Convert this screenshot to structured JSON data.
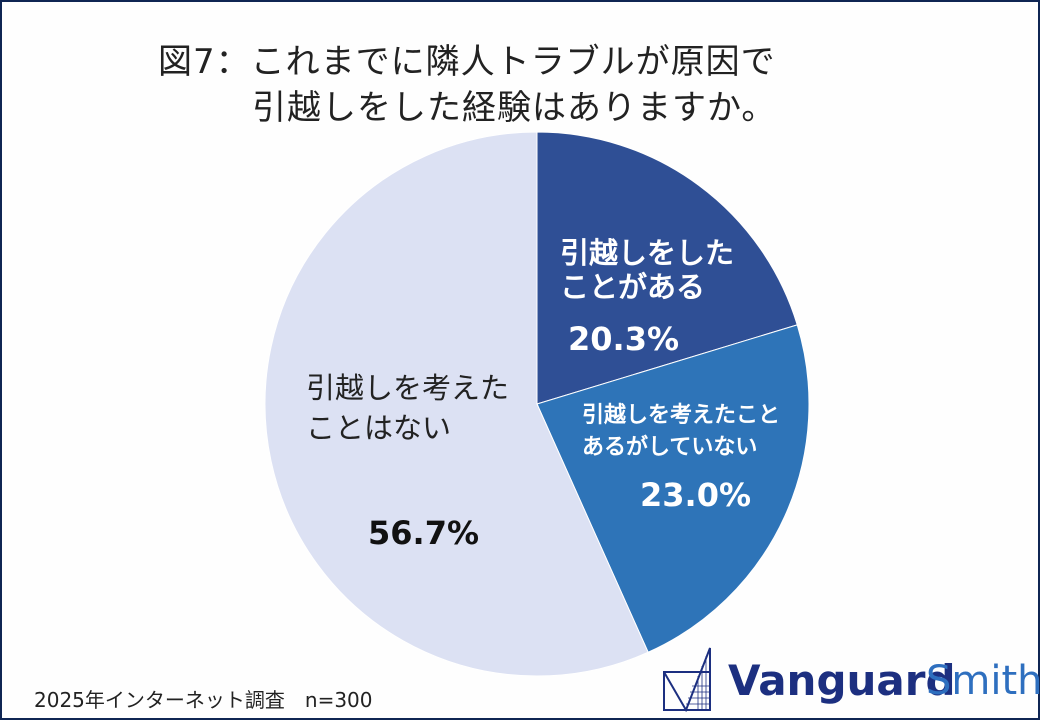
{
  "chart_data": {
    "type": "pie",
    "title": [
      "図7：これまでに隣人トラブルが原因で",
      "引越しをした経験はありますか。"
    ],
    "start": "12 o'clock, clockwise",
    "slices": [
      {
        "label": [
          "引越しをした",
          "ことがある"
        ],
        "value": 20.3,
        "value_label": "20.3%",
        "color": "#2f4f95",
        "text_color": "#ffffff"
      },
      {
        "label": [
          "引越しを考えたこと",
          "あるがしていない"
        ],
        "value": 23.0,
        "value_label": "23.0%",
        "color": "#2e74b8",
        "text_color": "#ffffff"
      },
      {
        "label": [
          "引越しを考えた",
          "ことはない"
        ],
        "value": 56.7,
        "value_label": "56.7%",
        "color": "#dce1f3",
        "text_color": "#222222"
      }
    ]
  },
  "footer": "2025年インターネット調査　n=300",
  "logo": {
    "word1": "Vanguard",
    "word2": "Smith",
    "color1": "#1c2f80",
    "color2": "#2e6fbf"
  }
}
